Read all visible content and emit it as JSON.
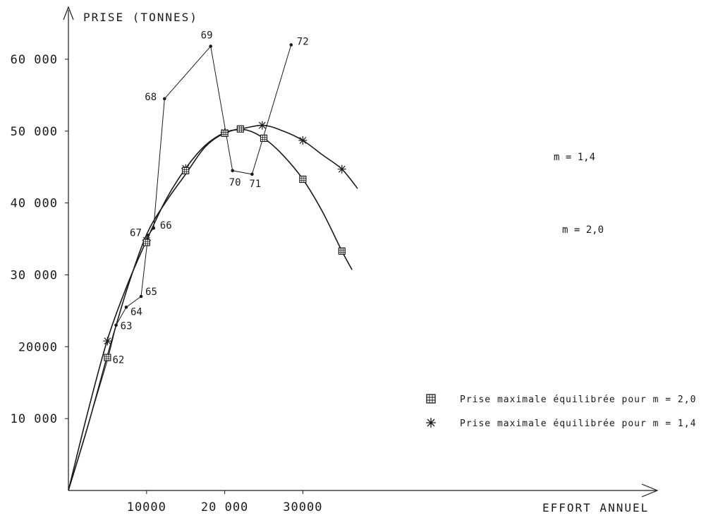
{
  "chart_data": {
    "type": "line",
    "ylabel": "PRISE (TONNES)",
    "xlabel": "EFFORT ANNUEL",
    "xlim": [
      0,
      37500
    ],
    "ylim": [
      0,
      65000
    ],
    "x_ticks": [
      {
        "value": 10000,
        "label": "10000"
      },
      {
        "value": 20000,
        "label": "20 000"
      },
      {
        "value": 30000,
        "label": "30000"
      }
    ],
    "y_ticks": [
      {
        "value": 10000,
        "label": "10 000"
      },
      {
        "value": 20000,
        "label": "20000"
      },
      {
        "value": 30000,
        "label": "30 000"
      },
      {
        "value": 40000,
        "label": "40 000"
      },
      {
        "value": 50000,
        "label": "50 000"
      },
      {
        "value": 60000,
        "label": "60 000"
      }
    ],
    "grid": false,
    "observed": {
      "points": [
        {
          "label": "62",
          "x": 5100,
          "y": 18500
        },
        {
          "label": "63",
          "x": 6100,
          "y": 23000
        },
        {
          "label": "64",
          "x": 7400,
          "y": 25500
        },
        {
          "label": "65",
          "x": 9300,
          "y": 27000
        },
        {
          "label": "66",
          "x": 10900,
          "y": 36500
        },
        {
          "label": "67",
          "x": 10200,
          "y": 35500
        },
        {
          "label": "68",
          "x": 12300,
          "y": 54500
        },
        {
          "label": "69",
          "x": 18200,
          "y": 61800
        },
        {
          "label": "70",
          "x": 21000,
          "y": 44500
        },
        {
          "label": "71",
          "x": 23500,
          "y": 44000
        },
        {
          "label": "72",
          "x": 28500,
          "y": 62000
        }
      ]
    },
    "series": [
      {
        "name": "m = 1,4",
        "marker": "asterisk",
        "x": [
          0,
          2500,
          5000,
          7500,
          10000,
          12500,
          15000,
          17500,
          20000,
          22500,
          25000,
          27500,
          30000,
          32500,
          35000,
          37000
        ],
        "y": [
          0,
          11000,
          21000,
          28500,
          34800,
          40500,
          44800,
          48000,
          49800,
          50400,
          50800,
          50000,
          48700,
          46700,
          44700,
          42000
        ],
        "equilibrium_markers": [
          {
            "x": 5000,
            "y": 20800
          },
          {
            "x": 10000,
            "y": 34800
          },
          {
            "x": 15000,
            "y": 44800
          },
          {
            "x": 20000,
            "y": 49800
          },
          {
            "x": 24800,
            "y": 50800
          },
          {
            "x": 30000,
            "y": 48700
          },
          {
            "x": 35000,
            "y": 44700
          }
        ]
      },
      {
        "name": "m = 2,0",
        "marker": "square",
        "x": [
          0,
          2500,
          5000,
          7500,
          10000,
          12500,
          15000,
          17500,
          20000,
          22500,
          25000,
          27500,
          30000,
          32500,
          35000,
          36300
        ],
        "y": [
          0,
          9000,
          18800,
          28000,
          35600,
          40200,
          44000,
          47800,
          49700,
          50200,
          49000,
          46600,
          43300,
          38800,
          33300,
          30700
        ],
        "equilibrium_markers": [
          {
            "x": 5000,
            "y": 18500
          },
          {
            "x": 10000,
            "y": 34500
          },
          {
            "x": 15000,
            "y": 44500
          },
          {
            "x": 20000,
            "y": 49700
          },
          {
            "x": 22000,
            "y": 50300
          },
          {
            "x": 25000,
            "y": 49000
          },
          {
            "x": 30000,
            "y": 43300
          },
          {
            "x": 35000,
            "y": 33300
          }
        ]
      }
    ],
    "curve_labels": {
      "m14": "m = 1,4",
      "m20": "m = 2,0"
    },
    "legend": {
      "placement": "right",
      "items": [
        {
          "marker": "square",
          "text": "Prise maximale équilibrée pour m = 2,0"
        },
        {
          "marker": "asterisk",
          "text": "Prise maximale équilibrée pour m = 1,4"
        }
      ]
    },
    "colors": {
      "ink": "#1a1a1a",
      "background": "#ffffff"
    }
  }
}
